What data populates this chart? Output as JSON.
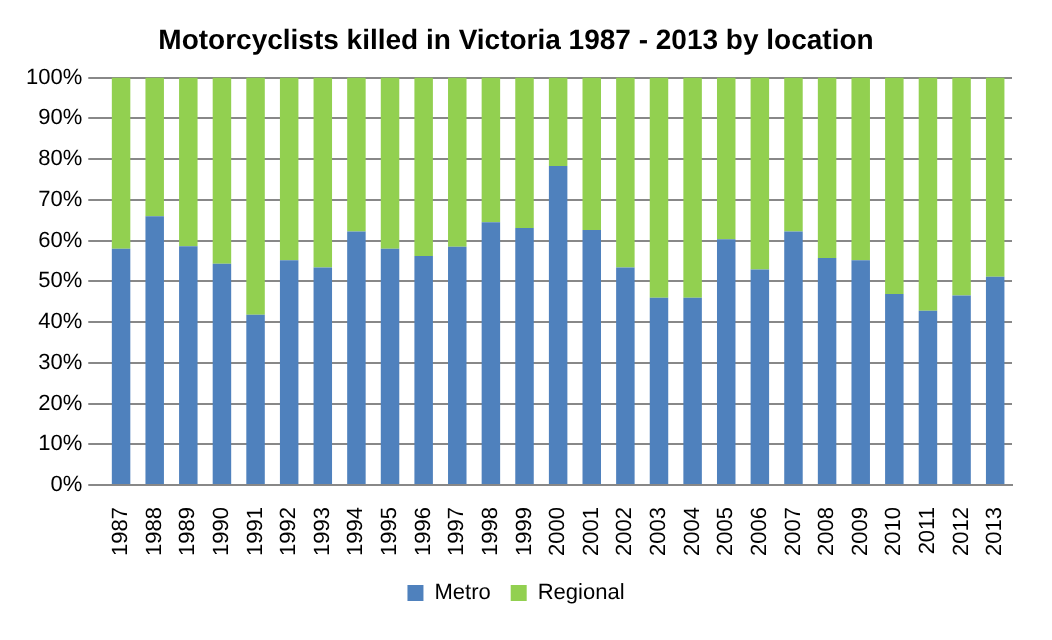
{
  "chart_data": {
    "type": "bar",
    "title": "Motorcyclists killed in Victoria 1987 - 2013 by location",
    "stacked": true,
    "categories": [
      "1987",
      "1988",
      "1989",
      "1990",
      "1991",
      "1992",
      "1993",
      "1994",
      "1995",
      "1996",
      "1997",
      "1998",
      "1999",
      "2000",
      "2001",
      "2002",
      "2003",
      "2004",
      "2005",
      "2006",
      "2007",
      "2008",
      "2009",
      "2010",
      "2011",
      "2012",
      "2013"
    ],
    "series": [
      {
        "name": "Metro",
        "color": "#4f81bd",
        "values": [
          58,
          66,
          58.6,
          54.3,
          41.8,
          55.2,
          53.4,
          62.2,
          58,
          56.2,
          58.5,
          64.5,
          63.1,
          78.3,
          62.6,
          53.4,
          46,
          46,
          60.3,
          52.9,
          62.2,
          55.7,
          55.2,
          46.9,
          42.8,
          46.5,
          51.1
        ]
      },
      {
        "name": "Regional",
        "color": "#92d050",
        "values": [
          42,
          34,
          41.4,
          45.7,
          58.2,
          44.8,
          46.6,
          37.8,
          42,
          43.8,
          41.5,
          35.5,
          36.9,
          21.7,
          37.4,
          46.6,
          54,
          54,
          39.7,
          47.1,
          37.8,
          44.3,
          44.8,
          53.1,
          57.2,
          53.5,
          48.9
        ]
      }
    ],
    "ylim": [
      0,
      100
    ],
    "yticks": [
      {
        "value": 0,
        "label": "0%"
      },
      {
        "value": 10,
        "label": "10%"
      },
      {
        "value": 20,
        "label": "20%"
      },
      {
        "value": 30,
        "label": "30%"
      },
      {
        "value": 40,
        "label": "40%"
      },
      {
        "value": 50,
        "label": "50%"
      },
      {
        "value": 60,
        "label": "60%"
      },
      {
        "value": 70,
        "label": "70%"
      },
      {
        "value": 80,
        "label": "80%"
      },
      {
        "value": 90,
        "label": "90%"
      },
      {
        "value": 100,
        "label": "100%"
      }
    ],
    "grid": "y",
    "legend": "bottom"
  }
}
